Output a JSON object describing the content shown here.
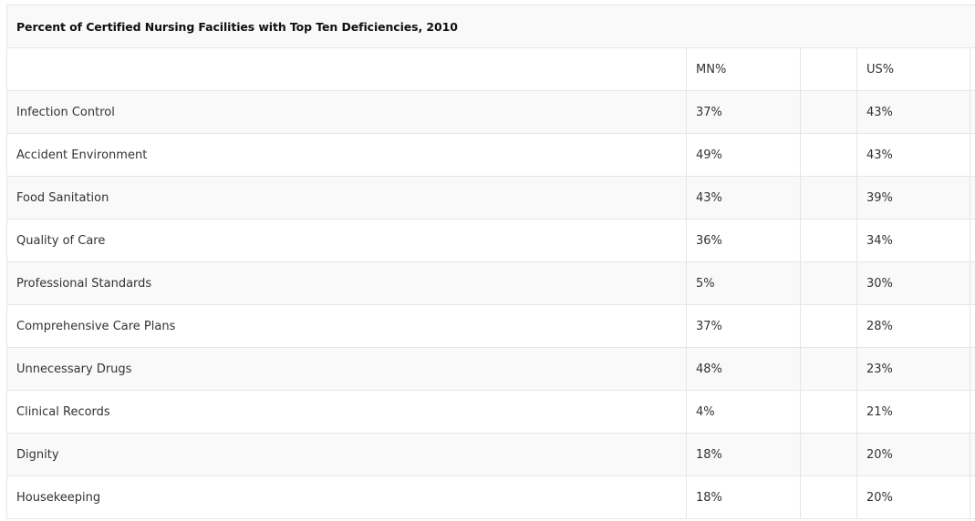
{
  "chart_data": {
    "type": "table",
    "title": "Percent of Certified Nursing Facilities with Top Ten Deficiencies, 2010",
    "columns": [
      "",
      "MN%",
      "US%"
    ],
    "rows": [
      {
        "label": "Infection Control",
        "mn": "37%",
        "us": "43%"
      },
      {
        "label": "Accident Environment",
        "mn": "49%",
        "us": "43%"
      },
      {
        "label": "Food Sanitation",
        "mn": "43%",
        "us": "39%"
      },
      {
        "label": "Quality of Care",
        "mn": "36%",
        "us": "34%"
      },
      {
        "label": "Professional Standards",
        "mn": "5%",
        "us": "30%"
      },
      {
        "label": "Comprehensive Care Plans",
        "mn": "37%",
        "us": "28%"
      },
      {
        "label": "Unnecessary Drugs",
        "mn": "48%",
        "us": "23%"
      },
      {
        "label": "Clinical Records",
        "mn": "4%",
        "us": "21%"
      },
      {
        "label": "Dignity",
        "mn": "18%",
        "us": "20%"
      },
      {
        "label": "Housekeeping",
        "mn": "18%",
        "us": "20%"
      }
    ]
  }
}
